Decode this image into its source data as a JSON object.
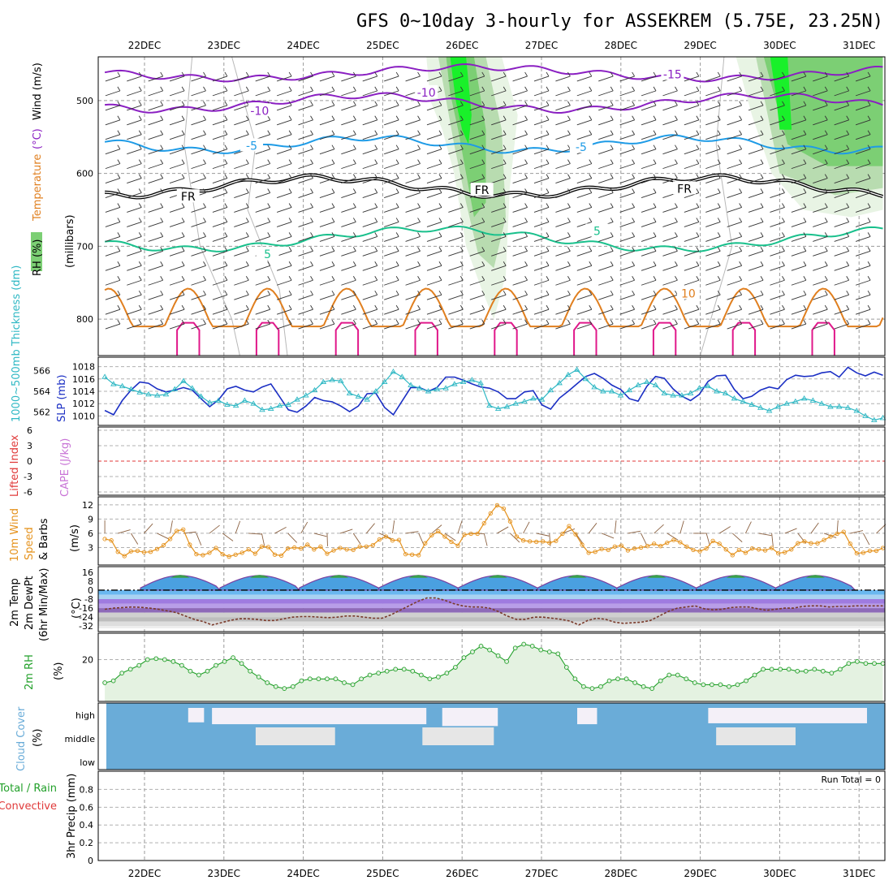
{
  "title": "GFS 0~10day 3-hourly for ASSEKREM (5.75E, 23.25N)",
  "chart_data": {
    "type": "line",
    "x_dates": [
      "22DEC",
      "23DEC",
      "24DEC",
      "25DEC",
      "26DEC",
      "27DEC",
      "28DEC",
      "29DEC",
      "30DEC",
      "31DEC"
    ],
    "colors": {
      "purple": "#8a1fc2",
      "blue": "#1e9be6",
      "black": "#000000",
      "teal": "#19c08c",
      "orange": "#e07f1f",
      "magenta": "#e0188a",
      "slp": "#1b2fc4",
      "thick": "#2fb8c4",
      "wind": "#e5921c",
      "rh": "#22a02a",
      "cloud": "#6aacd8",
      "cloudgap": "#f4f0f8",
      "mid": "#e6e6e6",
      "green1": "#e8f4e4",
      "green2": "#b8dcb0",
      "green3": "#7ccf74",
      "green4": "#19f02a",
      "lifted": "#e03a3a",
      "cape": "#c873d6",
      "tempfill": "#9bd6f0"
    },
    "panels": {
      "upper": {
        "ylabel_rh": "RH (%)",
        "ylabel_main": "Temperature (°C)Wind (m/s)",
        "ylabel_mb": "(millibars)",
        "yticks": [
          500,
          600,
          700,
          800
        ],
        "ylim": [
          440,
          850
        ],
        "labels": [
          {
            "text": "-10",
            "color": "purple",
            "day": 3.55,
            "p": 490
          },
          {
            "text": "-15",
            "color": "purple",
            "day": 6.65,
            "p": 465
          },
          {
            "text": "-10",
            "color": "purple",
            "day": 1.45,
            "p": 515
          },
          {
            "text": "-5",
            "color": "blue",
            "day": 1.35,
            "p": 563
          },
          {
            "text": "-5",
            "color": "blue",
            "day": 5.5,
            "p": 565
          },
          {
            "text": "FR",
            "color": "black",
            "day": 0.55,
            "p": 633
          },
          {
            "text": "FR",
            "color": "black",
            "day": 4.25,
            "p": 624
          },
          {
            "text": "FR",
            "color": "black",
            "day": 6.8,
            "p": 622
          },
          {
            "text": "5",
            "color": "teal",
            "day": 5.7,
            "p": 680
          },
          {
            "text": "5",
            "color": "teal",
            "day": 1.55,
            "p": 712
          },
          {
            "text": "10",
            "color": "orange",
            "day": 6.85,
            "p": 766
          }
        ]
      },
      "slp": {
        "ylabel": "1000~500mb Thickness (dm)",
        "ylabel2": "SLP (mb)",
        "left_ticks": [
          562,
          564,
          566
        ],
        "right_ticks": [
          1010,
          1012,
          1014,
          1016,
          1018
        ],
        "slp_values": [
          1010.9,
          1010.2,
          1012.5,
          1014.2,
          1015.5,
          1015.3,
          1014.4,
          1013.9,
          1014.2,
          1014.6,
          1014.2,
          1012.8,
          1011.5,
          1012.6,
          1014.4,
          1014.8,
          1014.2,
          1013.9,
          1014.7,
          1015.2,
          1013.1,
          1011.0,
          1010.6,
          1011.6,
          1013.0,
          1012.5,
          1012.3,
          1011.6,
          1010.7,
          1011.6,
          1013.6,
          1013.7,
          1011.4,
          1010.2,
          1012.4,
          1014.6,
          1014.6,
          1014.0,
          1014.6,
          1016.3,
          1016.3,
          1015.8,
          1015.2,
          1014.7,
          1014.5,
          1013.9,
          1012.8,
          1012.8,
          1013.9,
          1014.1,
          1011.8,
          1011.1,
          1012.9,
          1014.0,
          1015.2,
          1016.4,
          1016.9,
          1016.1,
          1015.0,
          1014.3,
          1012.8,
          1012.4,
          1014.8,
          1016.4,
          1016.1,
          1014.4,
          1013.2,
          1012.5,
          1013.5,
          1015.6,
          1016.5,
          1016.6,
          1014.3,
          1012.8,
          1013.2,
          1014.2,
          1014.7,
          1014.4,
          1015.9,
          1016.6,
          1016.4,
          1016.5,
          1017.0,
          1017.2,
          1016.3,
          1017.9,
          1017.0,
          1016.5,
          1017.1,
          1016.6
        ],
        "thick_values": [
          565.4,
          564.7,
          564.5,
          564.2,
          563.9,
          563.7,
          563.6,
          563.7,
          564.2,
          565.0,
          564.3,
          563.5,
          562.9,
          563.1,
          562.7,
          562.6,
          563.1,
          562.8,
          562.2,
          562.3,
          562.6,
          562.7,
          563.2,
          563.6,
          564.1,
          564.9,
          565.1,
          565.0,
          563.8,
          563.5,
          563.2,
          564.0,
          564.9,
          565.9,
          565.4,
          564.6,
          564.3,
          564.0,
          564.2,
          564.3,
          564.7,
          564.9,
          565.1,
          564.8,
          562.6,
          562.3,
          562.5,
          562.8,
          563.0,
          563.3,
          563.2,
          564.1,
          564.8,
          565.6,
          566.1,
          565.2,
          564.4,
          564.0,
          564.0,
          563.6,
          564.1,
          564.6,
          564.9,
          564.6,
          563.8,
          563.6,
          563.6,
          563.8,
          564.3,
          564.5,
          564.0,
          563.8,
          563.3,
          563.0,
          562.7,
          562.4,
          562.1,
          562.5,
          562.8,
          563.0,
          563.3,
          563.1,
          562.8,
          562.5,
          562.5,
          562.4,
          562.1,
          561.6,
          561.2,
          561.4
        ]
      },
      "cape": {
        "ylabel": "Lifted Index",
        "ylabel2": "CAPE (J/kg)",
        "yticks": [
          6,
          3,
          0,
          -3,
          -6
        ]
      },
      "wind10m": {
        "ylabel": "10m Wind Speed & Barbs",
        "ylabel2": "(m/s)",
        "yticks": [
          3,
          6,
          9,
          12
        ],
        "values": [
          4.8,
          4.5,
          2.1,
          1.2,
          2.2,
          2.3,
          2.0,
          2.1,
          2.7,
          3.5,
          4.8,
          6.5,
          6.8,
          3.6,
          1.6,
          1.4,
          1.9,
          2.9,
          1.6,
          1.1,
          1.5,
          1.9,
          2.6,
          1.7,
          3.2,
          3.1,
          1.5,
          1.3,
          2.8,
          3.0,
          2.8,
          3.6,
          2.6,
          3.2,
          1.7,
          2.4,
          2.9,
          2.6,
          2.5,
          3.2,
          3.2,
          3.5,
          4.7,
          5.3,
          4.5,
          4.6,
          1.6,
          1.5,
          1.4,
          3.9,
          5.6,
          6.4,
          5.3,
          4.2,
          3.4,
          5.7,
          5.9,
          5.9,
          8.1,
          10.2,
          11.9,
          11.2,
          8.5,
          5.3,
          4.5,
          4.3,
          4.2,
          4.3,
          4.0,
          4.4,
          5.9,
          7.5,
          5.8,
          3.6,
          1.9,
          2.1,
          2.7,
          2.5,
          3.2,
          3.4,
          2.4,
          2.8,
          3.0,
          3.3,
          3.8,
          3.3,
          4.0,
          4.6,
          4.1,
          3.2,
          2.5,
          2.2,
          2.8,
          4.4,
          3.8,
          2.6,
          1.4,
          2.5,
          1.9,
          2.8,
          2.6,
          2.4,
          2.9,
          1.8,
          2.0,
          2.6,
          3.9,
          4.3,
          3.9,
          3.9,
          4.6,
          5.3,
          5.9,
          6.3,
          3.8,
          1.8,
          1.9,
          2.3,
          2.3,
          2.9
        ]
      },
      "temp2m": {
        "ylabel": "2m Temp 2m DewPt",
        "ylabel2": "(6hr Min/Max)",
        "ylabel3": "(°C)",
        "yticks": [
          16,
          8,
          0,
          -8,
          -16,
          -24,
          -32
        ],
        "dewpt": [
          -17,
          -16,
          -15.5,
          -15,
          -15.3,
          -16,
          -17,
          -18.5,
          -20,
          -23,
          -26,
          -28,
          -31,
          -29,
          -27,
          -25.5,
          -25.5,
          -26,
          -27,
          -27,
          -25.5,
          -24,
          -23.5,
          -23.5,
          -24,
          -24.5,
          -24,
          -23,
          -23,
          -24,
          -25,
          -25,
          -22,
          -18,
          -14,
          -10,
          -7,
          -7,
          -9,
          -12,
          -14,
          -15,
          -15,
          -16,
          -19,
          -23,
          -26,
          -26,
          -24,
          -24,
          -25,
          -26,
          -27.5,
          -31,
          -27,
          -25,
          -26,
          -28.5,
          -29.5,
          -29,
          -28.5,
          -27,
          -23,
          -19,
          -16,
          -15,
          -14,
          -16.5,
          -17.5,
          -17,
          -15.5,
          -15,
          -15,
          -16.5,
          -18,
          -17,
          -16,
          -16,
          -14.5,
          -14,
          -14,
          -15,
          -14.5,
          -14.5,
          -14,
          -14,
          -14,
          -14
        ]
      },
      "rh2m": {
        "ylabel": "2m RH",
        "ylabel2": "(%)",
        "yticks": [
          20
        ],
        "values": [
          8,
          9,
          13,
          15,
          17,
          20,
          20.5,
          20,
          19,
          17,
          14,
          12,
          14,
          17,
          19,
          21,
          18,
          14,
          11,
          8,
          6,
          5,
          6,
          9,
          10,
          10,
          10,
          10,
          8,
          7,
          10,
          12,
          13,
          14,
          15,
          15,
          14,
          12,
          10,
          11,
          13,
          16,
          21,
          24,
          27,
          25,
          22,
          19,
          26,
          28,
          27,
          25,
          24,
          23,
          16,
          10,
          6,
          5,
          6,
          9,
          10,
          10,
          8,
          6,
          5,
          9,
          12,
          12,
          10,
          8,
          7,
          7,
          7,
          6,
          7,
          9,
          12,
          15,
          15,
          15,
          15,
          14,
          14,
          15,
          14,
          13,
          15,
          18,
          19,
          18,
          18,
          18
        ]
      },
      "cloud": {
        "ylabel": "Cloud Cover",
        "ylabel2": "(%)",
        "levels": [
          "high",
          "middle",
          "low"
        ]
      },
      "precip": {
        "ylabel": "Total / Rain",
        "ylabel_conv": "Convective",
        "ylabel2": "3hr Precip (mm)",
        "yticks": [
          0,
          0.2,
          0.4,
          0.6,
          0.8
        ],
        "run_total": "Run Total = 0"
      }
    }
  }
}
